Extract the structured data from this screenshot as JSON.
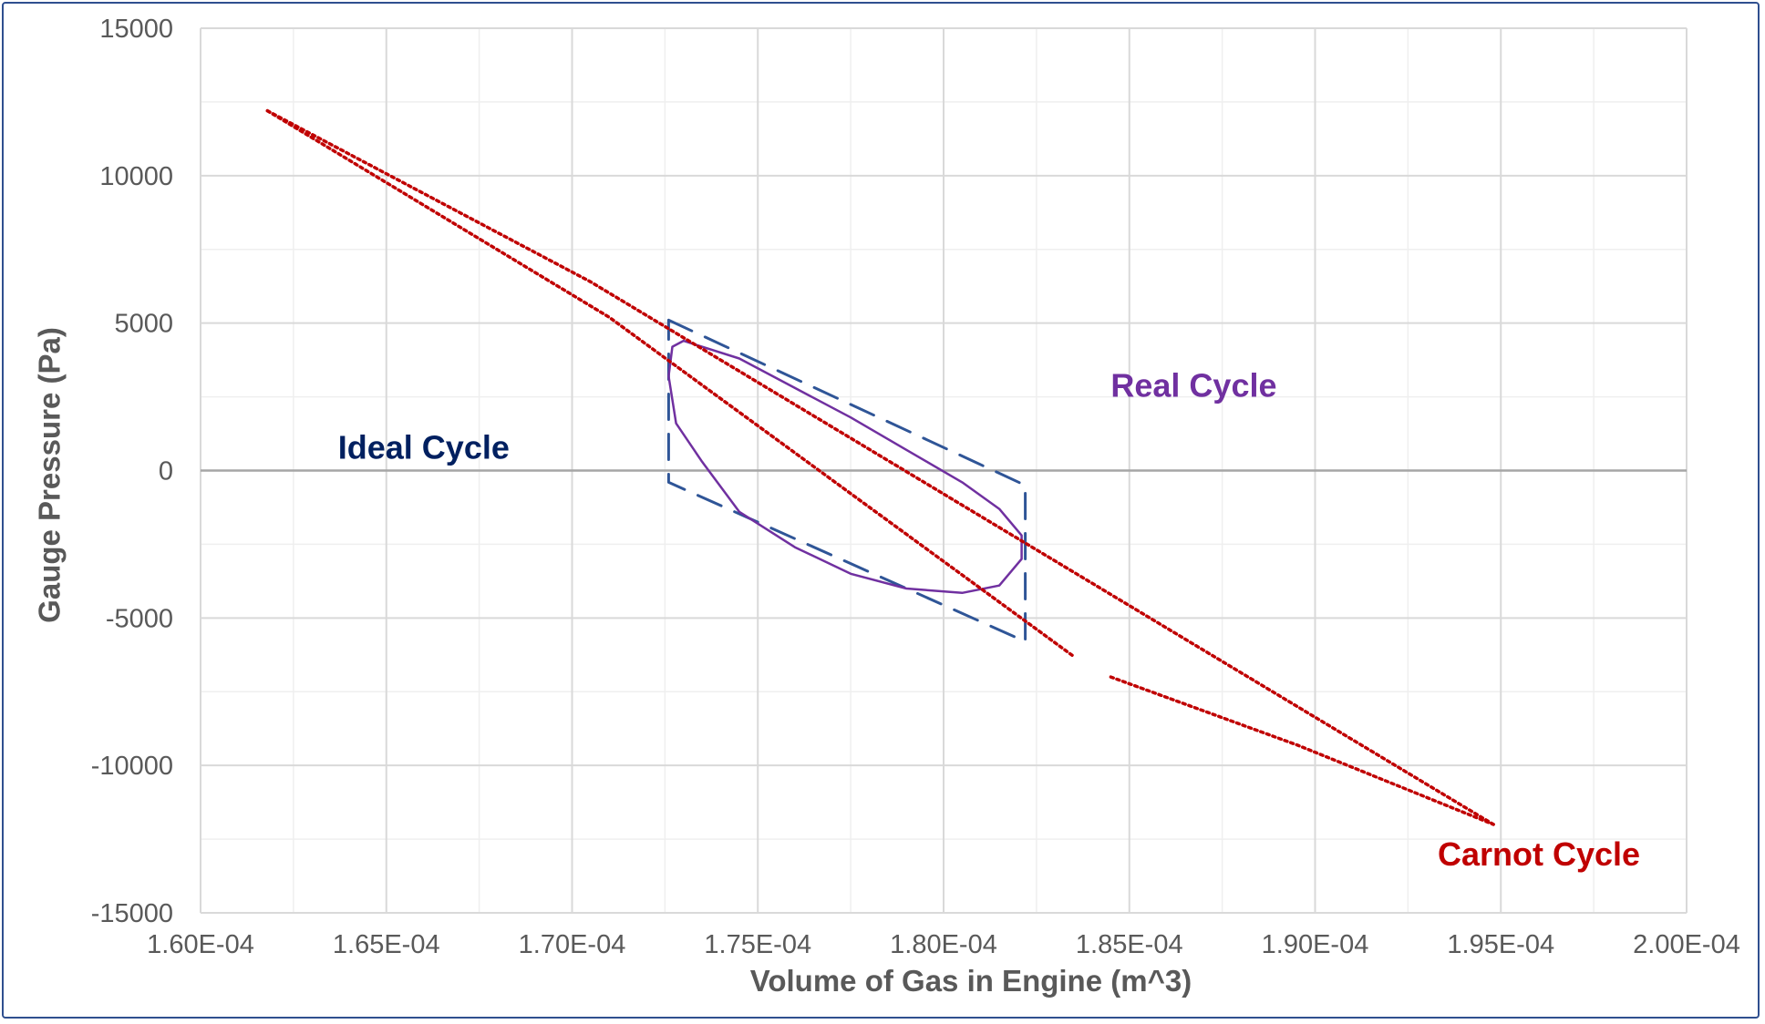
{
  "chart_data": {
    "type": "scatter",
    "xlabel": "Volume of Gas in Engine (m^3)",
    "ylabel": "Gauge Pressure (Pa)",
    "xlim": [
      0.00016,
      0.0002
    ],
    "ylim": [
      -15000,
      15000
    ],
    "x_ticks": [
      0.00016,
      0.000165,
      0.00017,
      0.000175,
      0.00018,
      0.000185,
      0.00019,
      0.000195,
      0.0002
    ],
    "x_tick_labels": [
      "1.60E-04",
      "1.65E-04",
      "1.70E-04",
      "1.75E-04",
      "1.80E-04",
      "1.85E-04",
      "1.90E-04",
      "1.95E-04",
      "2.00E-04"
    ],
    "y_ticks": [
      15000,
      10000,
      5000,
      0,
      -5000,
      -10000,
      -15000
    ],
    "y_tick_labels": [
      "15000",
      "10000",
      "5000",
      "0",
      "-5000",
      "-10000",
      "-15000"
    ],
    "grid": true,
    "series": [
      {
        "name": "Ideal Cycle",
        "style": "dashed",
        "color": "#2f5597",
        "x": [
          0.0001726,
          0.0001822,
          0.0001822,
          0.0001726,
          0.0001726
        ],
        "y": [
          5100,
          -500,
          -5800,
          -400,
          5100
        ]
      },
      {
        "name": "Real Cycle",
        "style": "solid",
        "color": "#7030a0",
        "x": [
          0.0001727,
          0.000173,
          0.0001745,
          0.000176,
          0.0001775,
          0.000179,
          0.0001805,
          0.0001815,
          0.0001821,
          0.0001821,
          0.0001815,
          0.0001805,
          0.000179,
          0.0001775,
          0.000176,
          0.0001745,
          0.0001735,
          0.0001728,
          0.0001726,
          0.0001727
        ],
        "y": [
          4200,
          4400,
          3800,
          2800,
          1800,
          700,
          -400,
          -1300,
          -2200,
          -3000,
          -3900,
          -4150,
          -4000,
          -3500,
          -2600,
          -1400,
          300,
          1600,
          3200,
          4200
        ]
      },
      {
        "name": "Carnot Cycle",
        "style": "dotted",
        "color": "#c00000",
        "segments": [
          {
            "x": [
              0.0001618,
              0.0001705,
              0.0001948
            ],
            "y": [
              12200,
              6400,
              -12000
            ]
          },
          {
            "x": [
              0.0001618,
              0.000171,
              0.0001835
            ],
            "y": [
              12200,
              5200,
              -6300
            ]
          },
          {
            "x": [
              0.0001845,
              0.0001895,
              0.0001948
            ],
            "y": [
              -7000,
              -9300,
              -12000
            ]
          }
        ]
      }
    ],
    "annotations": [
      {
        "text": "Ideal Cycle",
        "x": 0.0001637,
        "y": 400,
        "color": "#002060"
      },
      {
        "text": "Real Cycle",
        "x": 0.0001845,
        "y": 2500,
        "color": "#7030a0"
      },
      {
        "text": "Carnot Cycle",
        "x": 0.0001933,
        "y": -13400,
        "color": "#c00000"
      }
    ]
  }
}
